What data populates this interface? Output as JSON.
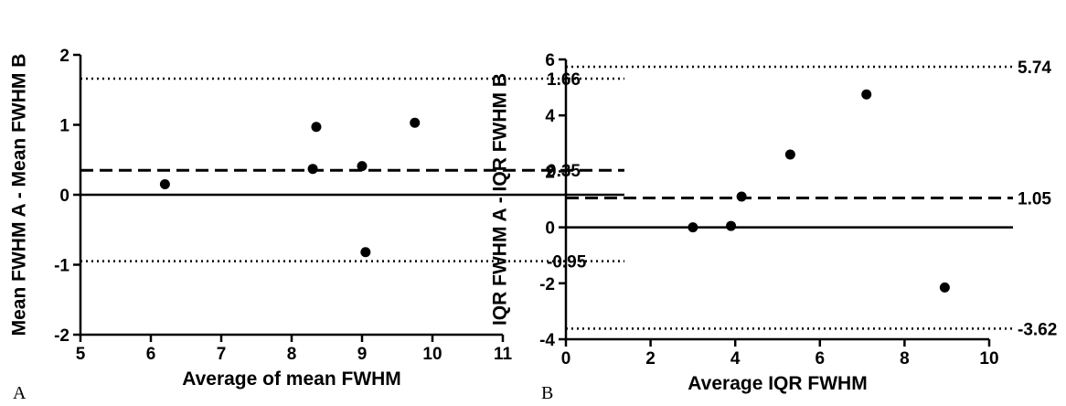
{
  "chart_data": [
    {
      "type": "scatter",
      "panel_label": "A",
      "xlabel": "Average of mean FWHM",
      "ylabel": "Mean FWHM A - Mean FWHM B",
      "xlim": [
        5,
        11
      ],
      "ylim": [
        -2,
        2
      ],
      "xticks": [
        5,
        6,
        7,
        8,
        9,
        10,
        11
      ],
      "yticks": [
        -2,
        -1,
        0,
        1,
        2
      ],
      "points": [
        {
          "x": 6.2,
          "y": 0.15
        },
        {
          "x": 8.3,
          "y": 0.37
        },
        {
          "x": 8.35,
          "y": 0.97
        },
        {
          "x": 9.0,
          "y": 0.41
        },
        {
          "x": 9.05,
          "y": -0.82
        },
        {
          "x": 9.75,
          "y": 1.03
        }
      ],
      "reference_lines": [
        {
          "y": 1.66,
          "style": "dotted",
          "label": "1.66"
        },
        {
          "y": 0.35,
          "style": "dashed",
          "label": "0.35"
        },
        {
          "y": 0,
          "style": "solid",
          "label": ""
        },
        {
          "y": -0.95,
          "style": "dotted",
          "label": "-0.95"
        }
      ],
      "grid": false,
      "legend": false
    },
    {
      "type": "scatter",
      "panel_label": "B",
      "xlabel": "Average IQR FWHM",
      "ylabel": "IQR FWHM A - IQR FWHM B",
      "xlim": [
        0,
        10
      ],
      "ylim": [
        -4,
        6
      ],
      "xticks": [
        0,
        2,
        4,
        6,
        8,
        10
      ],
      "yticks": [
        -4,
        -2,
        0,
        2,
        4,
        6
      ],
      "points": [
        {
          "x": 3.0,
          "y": 0.0
        },
        {
          "x": 3.9,
          "y": 0.05
        },
        {
          "x": 4.15,
          "y": 1.1
        },
        {
          "x": 5.3,
          "y": 2.6
        },
        {
          "x": 7.1,
          "y": 4.75
        },
        {
          "x": 8.95,
          "y": -2.15
        }
      ],
      "reference_lines": [
        {
          "y": 5.74,
          "style": "dotted",
          "label": "5.74"
        },
        {
          "y": 1.05,
          "style": "dashed",
          "label": "1.05"
        },
        {
          "y": 0,
          "style": "solid",
          "label": ""
        },
        {
          "y": -3.62,
          "style": "dotted",
          "label": "-3.62"
        }
      ],
      "grid": false,
      "legend": false
    }
  ]
}
